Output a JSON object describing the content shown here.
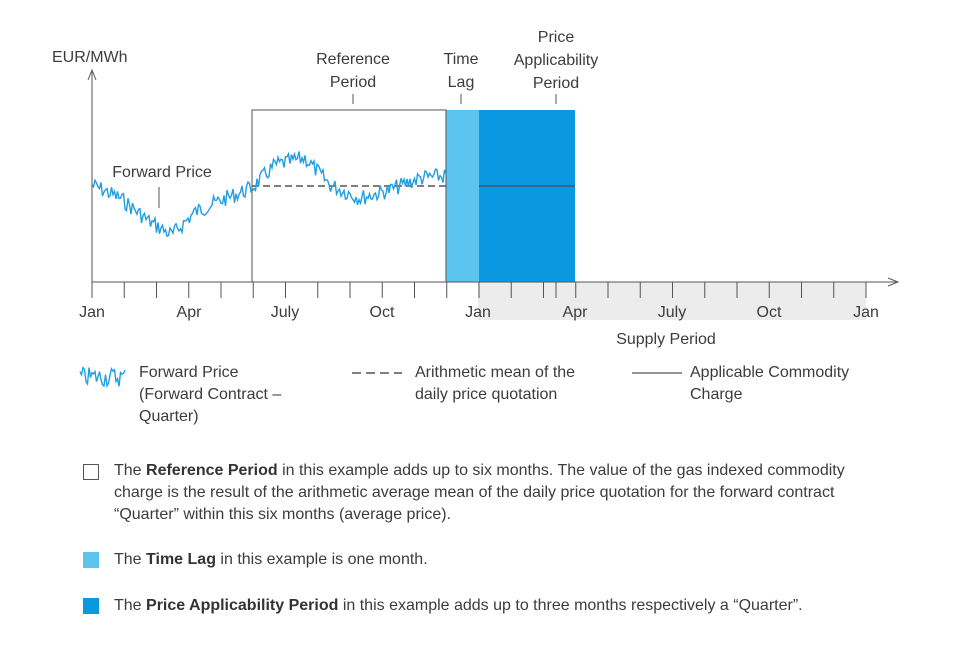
{
  "chart_data": {
    "type": "line",
    "ylabel": "EUR/MWh",
    "x_ticks": [
      "Jan",
      "Apr",
      "July",
      "Oct",
      "Jan",
      "Apr",
      "July",
      "Oct",
      "Jan"
    ],
    "annotations": {
      "forward_price": "Forward Price",
      "reference_period": [
        "Reference",
        "Period"
      ],
      "time_lag": [
        "Time",
        "Lag"
      ],
      "price_applicability_period": [
        "Price",
        "Applicability",
        "Period"
      ],
      "supply_period": "Supply Period"
    },
    "colors": {
      "series": "#1f9ee0",
      "time_lag": "#5bc5f0",
      "price_applicability": "#0a99e0",
      "supply_band": "#ececec",
      "mean_line": "#555555",
      "axis": "#555555"
    }
  },
  "legend": {
    "forward_price": [
      "Forward Price",
      "(Forward Contract –",
      "Quarter)"
    ],
    "mean": [
      "Arithmetic mean of the",
      "daily price quotation"
    ],
    "charge": [
      "Applicable Commodity",
      "Charge"
    ]
  },
  "notes": {
    "reference": {
      "prefix": "The ",
      "bold": "Reference Period",
      "text": " in this example adds up to six months. The value of the gas indexed commodity charge is the result of the arithmetic average mean of the daily price quotation for the forward contract “Quarter” within this six months (average price)."
    },
    "time_lag": {
      "prefix": "The ",
      "bold": "Time Lag",
      "text": " in this example is one month."
    },
    "applicability": {
      "prefix": "The ",
      "bold": "Price Applicability Period",
      "text": " in this example adds up to three months respectively a “Quarter”."
    }
  }
}
